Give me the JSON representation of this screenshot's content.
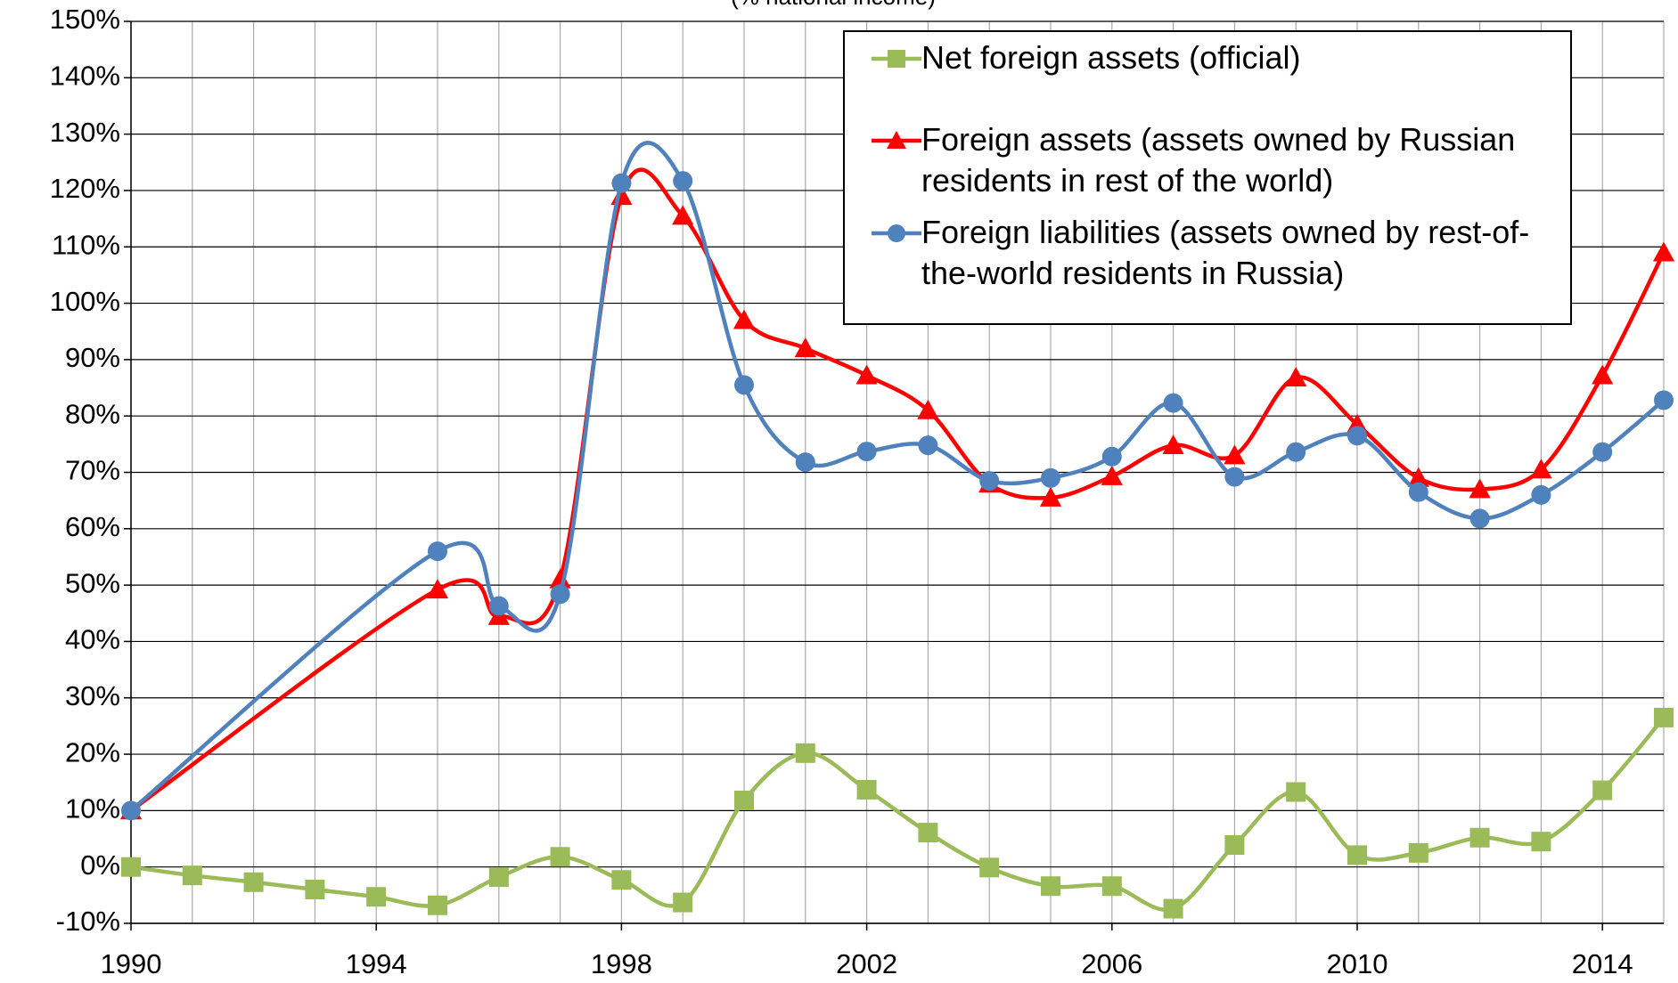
{
  "chart_data": {
    "type": "line",
    "subtitle": "(% national income)",
    "xlim": [
      1990,
      2015
    ],
    "xticks": [
      1990,
      1994,
      1998,
      2002,
      2006,
      2010,
      2014
    ],
    "xgrid": [
      1990,
      1991,
      1992,
      1993,
      1994,
      1995,
      1996,
      1997,
      1998,
      1999,
      2000,
      2001,
      2002,
      2003,
      2004,
      2005,
      2006,
      2007,
      2008,
      2009,
      2010,
      2011,
      2012,
      2013,
      2014,
      2015
    ],
    "ylim": [
      -10,
      150
    ],
    "yticks": [
      {
        "value": -10,
        "label": "-10%"
      },
      {
        "value": 0,
        "label": "0%"
      },
      {
        "value": 10,
        "label": "10%"
      },
      {
        "value": 20,
        "label": "20%"
      },
      {
        "value": 30,
        "label": "30%"
      },
      {
        "value": 40,
        "label": "40%"
      },
      {
        "value": 50,
        "label": "50%"
      },
      {
        "value": 60,
        "label": "60%"
      },
      {
        "value": 70,
        "label": "70%"
      },
      {
        "value": 80,
        "label": "80%"
      },
      {
        "value": 90,
        "label": "90%"
      },
      {
        "value": 100,
        "label": "100%"
      },
      {
        "value": 110,
        "label": "110%"
      },
      {
        "value": 120,
        "label": "120%"
      },
      {
        "value": 130,
        "label": "130%"
      },
      {
        "value": 140,
        "label": "140%"
      },
      {
        "value": 150,
        "label": "150%"
      }
    ],
    "grid": true,
    "legend": "top-right",
    "series": [
      {
        "name": "Net foreign assets (official)",
        "color": "#9bbb59",
        "marker": "square",
        "x": [
          1990,
          1991,
          1992,
          1993,
          1994,
          1995,
          1996,
          1997,
          1998,
          1999,
          2000,
          2001,
          2002,
          2003,
          2004,
          2005,
          2006,
          2007,
          2008,
          2009,
          2010,
          2011,
          2012,
          2013,
          2014,
          2015
        ],
        "values": [
          0,
          -1.5,
          -2.7,
          -4,
          -5.3,
          -6.8,
          -1.8,
          1.8,
          -2.3,
          -6.3,
          11.8,
          20.2,
          13.7,
          6.1,
          -0.1,
          -3.4,
          -3.4,
          -7.4,
          3.9,
          13.3,
          2.1,
          2.5,
          5.2,
          4.5,
          13.6,
          26.5
        ]
      },
      {
        "name": "Foreign assets (assets owned by Russian residents in rest of the world)",
        "color": "#ff0000",
        "marker": "triangle",
        "x": [
          1990,
          1995,
          1996,
          1997,
          1998,
          1999,
          2000,
          2001,
          2002,
          2003,
          2004,
          2005,
          2006,
          2007,
          2008,
          2009,
          2010,
          2011,
          2012,
          2013,
          2014,
          2015
        ],
        "values": [
          10,
          49.2,
          44.5,
          51,
          119,
          115.5,
          97,
          92,
          87.2,
          81,
          68,
          65.5,
          69.3,
          74.8,
          73,
          86.8,
          78.5,
          69,
          67,
          70.5,
          87.2,
          109
        ]
      },
      {
        "name": "Foreign liabilities (assets owned by rest-of-the-world residents in Russia)",
        "color": "#4f81bd",
        "marker": "circle",
        "x": [
          1990,
          1995,
          1996,
          1997,
          1998,
          1999,
          2000,
          2001,
          2002,
          2003,
          2004,
          2005,
          2006,
          2007,
          2008,
          2009,
          2010,
          2011,
          2012,
          2013,
          2014,
          2015
        ],
        "values": [
          10,
          56,
          46.3,
          48.4,
          121.3,
          121.7,
          85.5,
          71.8,
          73.7,
          74.8,
          68.5,
          69,
          72.8,
          82.3,
          69.2,
          73.6,
          76.5,
          66.5,
          61.8,
          66,
          73.6,
          82.8
        ]
      }
    ]
  }
}
